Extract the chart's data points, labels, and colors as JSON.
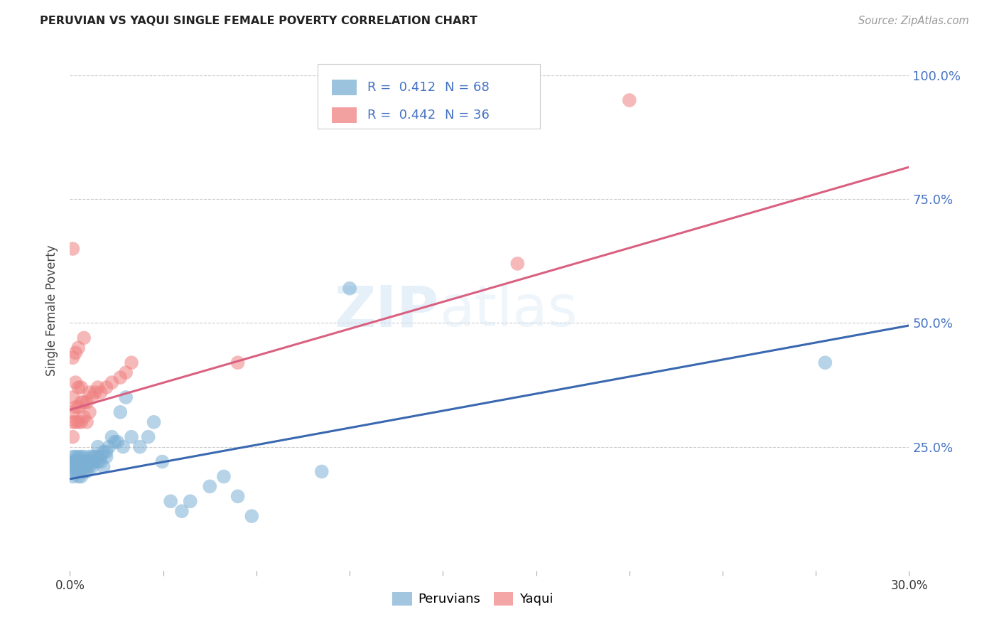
{
  "title": "PERUVIAN VS YAQUI SINGLE FEMALE POVERTY CORRELATION CHART",
  "source": "Source: ZipAtlas.com",
  "ylabel": "Single Female Poverty",
  "xlim": [
    0.0,
    0.3
  ],
  "ylim": [
    0.0,
    1.05
  ],
  "grid_color": "#cccccc",
  "bg_color": "#ffffff",
  "peruvians_color": "#7bafd4",
  "yaqui_color": "#f08080",
  "peruvians_line_color": "#3a68b0",
  "yaqui_line_color": "#d96080",
  "ytick_color": "#4472c4",
  "xtick_color": "#333333",
  "peruvians_R": 0.412,
  "peruvians_N": 68,
  "yaqui_R": 0.442,
  "yaqui_N": 36,
  "peru_line_x0": 0.0,
  "peru_line_y0": 0.185,
  "peru_line_x1": 0.3,
  "peru_line_y1": 0.495,
  "yaqui_line_x0": 0.0,
  "yaqui_line_y0": 0.325,
  "yaqui_line_x1": 0.3,
  "yaqui_line_y1": 0.815,
  "peruvians_x": [
    0.001,
    0.001,
    0.001,
    0.001,
    0.001,
    0.002,
    0.002,
    0.002,
    0.002,
    0.002,
    0.003,
    0.003,
    0.003,
    0.003,
    0.003,
    0.003,
    0.004,
    0.004,
    0.004,
    0.004,
    0.004,
    0.005,
    0.005,
    0.005,
    0.005,
    0.005,
    0.006,
    0.006,
    0.006,
    0.007,
    0.007,
    0.007,
    0.008,
    0.008,
    0.008,
    0.009,
    0.009,
    0.01,
    0.01,
    0.01,
    0.011,
    0.011,
    0.012,
    0.012,
    0.013,
    0.013,
    0.014,
    0.015,
    0.016,
    0.017,
    0.018,
    0.019,
    0.02,
    0.022,
    0.025,
    0.028,
    0.03,
    0.033,
    0.036,
    0.04,
    0.043,
    0.05,
    0.055,
    0.06,
    0.065,
    0.09,
    0.27,
    0.1
  ],
  "peruvians_y": [
    0.21,
    0.22,
    0.23,
    0.19,
    0.2,
    0.22,
    0.21,
    0.23,
    0.2,
    0.22,
    0.2,
    0.22,
    0.21,
    0.23,
    0.19,
    0.2,
    0.22,
    0.21,
    0.2,
    0.23,
    0.19,
    0.21,
    0.22,
    0.2,
    0.21,
    0.23,
    0.2,
    0.22,
    0.21,
    0.22,
    0.21,
    0.23,
    0.22,
    0.21,
    0.23,
    0.23,
    0.22,
    0.23,
    0.22,
    0.25,
    0.23,
    0.22,
    0.24,
    0.21,
    0.24,
    0.23,
    0.25,
    0.27,
    0.26,
    0.26,
    0.32,
    0.25,
    0.35,
    0.27,
    0.25,
    0.27,
    0.3,
    0.22,
    0.14,
    0.12,
    0.14,
    0.17,
    0.19,
    0.15,
    0.11,
    0.2,
    0.42,
    0.57
  ],
  "yaqui_x": [
    0.001,
    0.001,
    0.001,
    0.001,
    0.002,
    0.002,
    0.002,
    0.003,
    0.003,
    0.003,
    0.004,
    0.004,
    0.004,
    0.005,
    0.005,
    0.006,
    0.006,
    0.007,
    0.007,
    0.008,
    0.009,
    0.01,
    0.011,
    0.013,
    0.015,
    0.018,
    0.02,
    0.022,
    0.001,
    0.002,
    0.003,
    0.005,
    0.16,
    0.2,
    0.001,
    0.06
  ],
  "yaqui_y": [
    0.27,
    0.3,
    0.32,
    0.35,
    0.3,
    0.33,
    0.38,
    0.3,
    0.33,
    0.37,
    0.3,
    0.34,
    0.37,
    0.31,
    0.34,
    0.3,
    0.34,
    0.32,
    0.36,
    0.35,
    0.36,
    0.37,
    0.36,
    0.37,
    0.38,
    0.39,
    0.4,
    0.42,
    0.43,
    0.44,
    0.45,
    0.47,
    0.62,
    0.95,
    0.65,
    0.42
  ]
}
